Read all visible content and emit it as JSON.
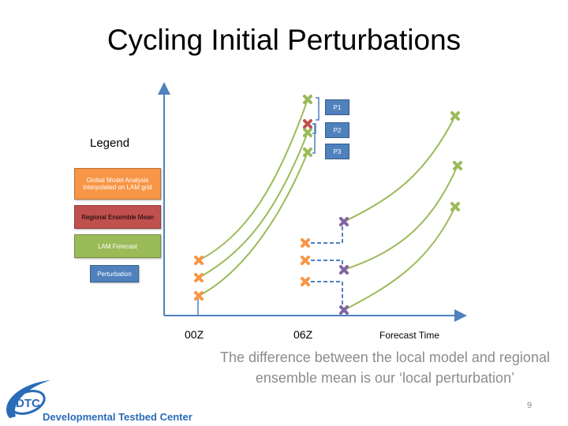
{
  "slide": {
    "title": "Cycling Initial Perturbations",
    "caption": "The difference between the local model and regional ensemble mean is our ‘local perturbation’",
    "page_number": "9",
    "logo": {
      "abbr": "DTC",
      "name": "Developmental Testbed Center"
    }
  },
  "legend": {
    "title": "Legend",
    "items": [
      {
        "label": "Global Model Analysis interpolated on LAM grid",
        "color": "#f79646"
      },
      {
        "label": "Regional Ensemble Mean",
        "color": "#c0504d"
      },
      {
        "label": "LAM Forecast",
        "color": "#9bbb59"
      },
      {
        "label": "Perturbation",
        "color": "#4f81bd"
      }
    ]
  },
  "diagram": {
    "x_ticks": [
      "00Z",
      "06Z"
    ],
    "x_label": "Forecast Time",
    "perturbations": [
      "P1",
      "P2",
      "P3"
    ],
    "colors": {
      "axis": "#4f81bd",
      "analysis": "#f79646",
      "mean": "#c0504d",
      "forecast": "#9bbb59",
      "perturbed": "#8064a2"
    }
  }
}
